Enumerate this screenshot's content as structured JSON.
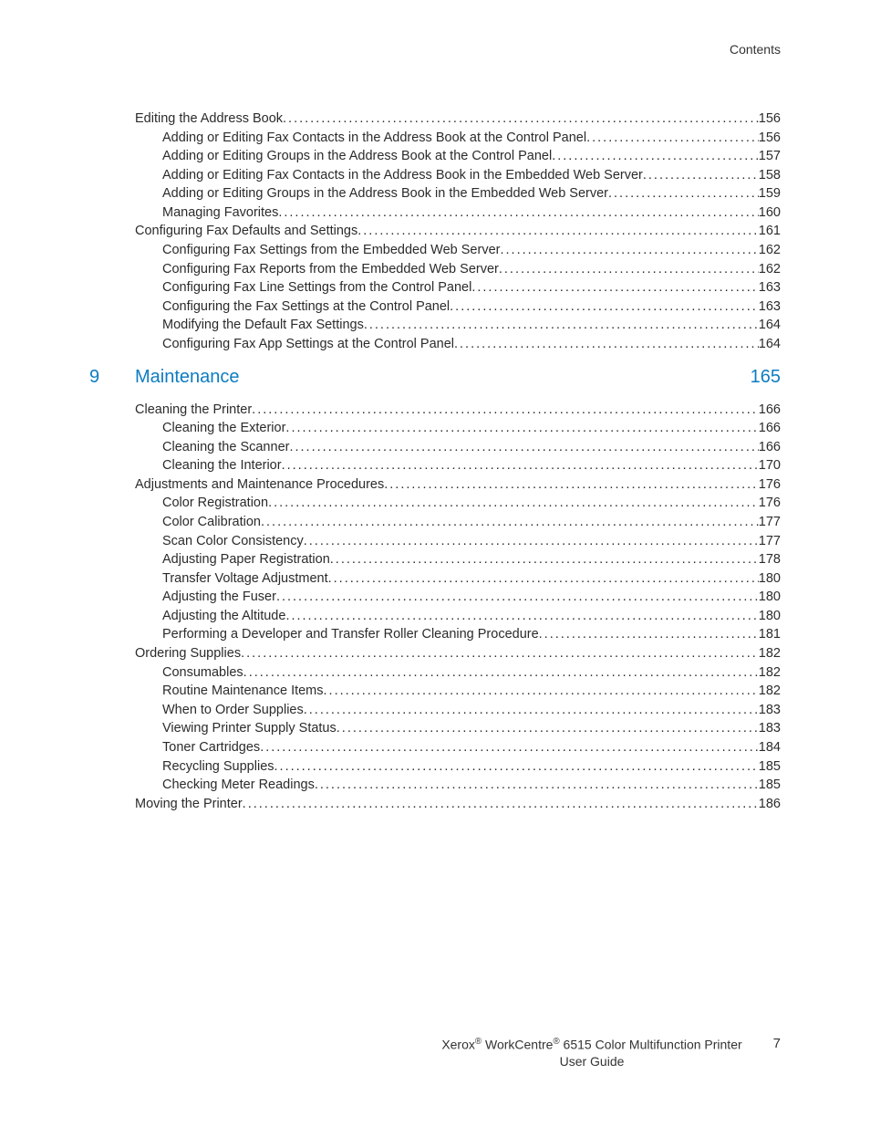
{
  "header": {
    "label": "Contents"
  },
  "chapter": {
    "num": "9",
    "title": "Maintenance",
    "page": "165"
  },
  "toc_top": [
    {
      "level": 1,
      "label": "Editing the Address Book",
      "page": "156",
      "dots": true
    },
    {
      "level": 2,
      "label": "Adding or Editing Fax Contacts in the Address Book at the Control Panel",
      "page": "156",
      "dots": true
    },
    {
      "level": 2,
      "label": "Adding or Editing Groups in the Address Book at the Control Panel",
      "page": "157",
      "dots": true
    },
    {
      "level": 2,
      "label": "Adding or Editing Fax Contacts in the Address Book in the Embedded Web Server",
      "page": "158",
      "dots": true
    },
    {
      "level": 2,
      "label": "Adding or Editing Groups in the Address Book in the Embedded Web Server",
      "page": "159",
      "dots": true
    },
    {
      "level": 2,
      "label": "Managing Favorites",
      "page": "160",
      "dots": true
    },
    {
      "level": 1,
      "label": "Configuring Fax Defaults and Settings",
      "page": "161",
      "dots": true
    },
    {
      "level": 2,
      "label": "Configuring Fax Settings from the Embedded Web Server",
      "page": "162",
      "dots": true
    },
    {
      "level": 2,
      "label": "Configuring Fax Reports from the Embedded Web Server",
      "page": "162",
      "dots": true
    },
    {
      "level": 2,
      "label": "Configuring Fax Line Settings from the Control Panel",
      "page": "163",
      "dots": true
    },
    {
      "level": 2,
      "label": "Configuring the Fax Settings at the Control Panel",
      "page": "163",
      "dots": true
    },
    {
      "level": 2,
      "label": "Modifying the Default Fax Settings",
      "page": "164",
      "dots": true
    },
    {
      "level": 2,
      "label": "Configuring Fax App Settings at the Control Panel",
      "page": "164",
      "dots": true
    }
  ],
  "toc_bottom": [
    {
      "level": 1,
      "label": "Cleaning the Printer",
      "page": "166",
      "dots": true
    },
    {
      "level": 2,
      "label": "Cleaning the Exterior",
      "page": "166",
      "dots": true
    },
    {
      "level": 2,
      "label": "Cleaning the Scanner",
      "page": "166",
      "dots": true
    },
    {
      "level": 2,
      "label": "Cleaning the Interior",
      "page": "170",
      "dots": true
    },
    {
      "level": 1,
      "label": "Adjustments and Maintenance Procedures",
      "page": "176",
      "dots": true
    },
    {
      "level": 2,
      "label": "Color Registration",
      "page": "176",
      "dots": true
    },
    {
      "level": 2,
      "label": "Color Calibration",
      "page": "177",
      "dots": true
    },
    {
      "level": 2,
      "label": "Scan Color Consistency",
      "page": "177",
      "dots": true
    },
    {
      "level": 2,
      "label": "Adjusting Paper Registration",
      "page": "178",
      "dots": true
    },
    {
      "level": 2,
      "label": "Transfer Voltage Adjustment",
      "page": "180",
      "dots": true
    },
    {
      "level": 2,
      "label": "Adjusting the Fuser",
      "page": "180",
      "dots": true
    },
    {
      "level": 2,
      "label": "Adjusting the Altitude",
      "page": "180",
      "dots": true
    },
    {
      "level": 2,
      "label": "Performing a Developer and Transfer Roller Cleaning Procedure",
      "page": "181",
      "dots": true
    },
    {
      "level": 1,
      "label": "Ordering Supplies",
      "page": "182",
      "dots": true
    },
    {
      "level": 2,
      "label": "Consumables",
      "page": "182",
      "dots": true
    },
    {
      "level": 2,
      "label": "Routine Maintenance Items",
      "page": "182",
      "dots": true
    },
    {
      "level": 2,
      "label": "When to Order Supplies",
      "page": "183",
      "dots": true
    },
    {
      "level": 2,
      "label": "Viewing Printer Supply Status",
      "page": "183",
      "dots": true
    },
    {
      "level": 2,
      "label": "Toner Cartridges",
      "page": "184",
      "dots": true
    },
    {
      "level": 2,
      "label": "Recycling Supplies",
      "page": "185",
      "dots": true
    },
    {
      "level": 2,
      "label": "Checking Meter Readings",
      "page": "185",
      "dots": true
    },
    {
      "level": 1,
      "label": "Moving the Printer",
      "page": "186",
      "dots": true
    }
  ],
  "footer": {
    "line1": "Xerox® WorkCentre® 6515 Color Multifunction Printer",
    "line2": "User Guide",
    "page": "7"
  }
}
